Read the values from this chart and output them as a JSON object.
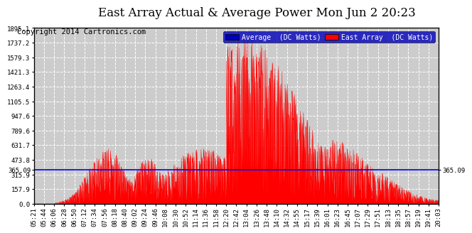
{
  "title": "East Array Actual & Average Power Mon Jun 2 20:23",
  "copyright": "Copyright 2014 Cartronics.com",
  "average_value": 365.09,
  "y_max": 1895.1,
  "y_min": 0.0,
  "y_ticks": [
    0.0,
    157.9,
    315.9,
    473.8,
    631.7,
    789.6,
    947.6,
    1105.5,
    1263.4,
    1421.3,
    1579.3,
    1737.2,
    1895.1
  ],
  "x_labels": [
    "05:21",
    "05:44",
    "06:06",
    "06:28",
    "06:50",
    "07:12",
    "07:34",
    "07:56",
    "08:18",
    "08:40",
    "09:02",
    "09:24",
    "09:46",
    "10:08",
    "10:30",
    "10:52",
    "11:14",
    "11:36",
    "11:58",
    "12:20",
    "12:42",
    "13:04",
    "13:26",
    "13:48",
    "14:10",
    "14:32",
    "14:55",
    "15:17",
    "15:39",
    "16:01",
    "16:23",
    "16:45",
    "17:07",
    "17:29",
    "17:51",
    "18:13",
    "18:35",
    "18:57",
    "19:19",
    "19:41",
    "20:03"
  ],
  "legend_avg_label": "Average  (DC Watts)",
  "legend_east_label": "East Array  (DC Watts)",
  "avg_color": "#0000ff",
  "east_color": "#ff0000",
  "bg_color": "#ffffff",
  "plot_bg_color": "#cccccc",
  "grid_color": "#ffffff",
  "title_fontsize": 12,
  "copyright_fontsize": 7.5,
  "tick_fontsize": 6.5
}
